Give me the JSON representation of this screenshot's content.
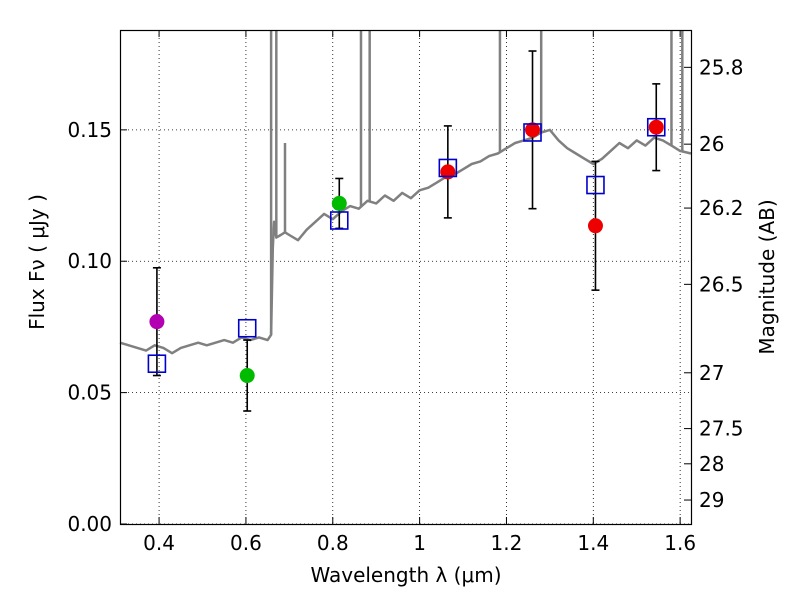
{
  "chart_data": {
    "type": "scatter",
    "xlabel": "Wavelength  λ (μm)",
    "ylabel": "Flux  Fν  ( μJy )",
    "y2label": "Magnitude (AB)",
    "xlim": [
      0.31,
      1.625
    ],
    "ylim": [
      0.0,
      0.188
    ],
    "grid": true,
    "x_ticks": [
      0.4,
      0.6,
      0.8,
      1.0,
      1.2,
      1.4,
      1.6
    ],
    "x_tick_labels": [
      "0.4",
      "0.6",
      "0.8",
      "1",
      "1.2",
      "1.4",
      "1.6"
    ],
    "y_ticks": [
      0.0,
      0.05,
      0.1,
      0.15
    ],
    "y_tick_labels": [
      "0.00",
      "0.05",
      "0.10",
      "0.15"
    ],
    "mag_ticks": [
      25.8,
      26.0,
      26.2,
      26.5,
      27.0,
      27.5,
      28.0,
      29.0
    ],
    "mag_tick_labels": [
      "25.8",
      "26",
      "26.2",
      "26.5",
      "27",
      "27.5",
      "28",
      "29"
    ],
    "colors": {
      "sed": "#808080",
      "model": "#0000cc",
      "err": "#000000",
      "magenta": "#b300b3",
      "green": "#00bb00",
      "red": "#ee0000"
    },
    "observed": [
      {
        "x": 0.395,
        "y": 0.077,
        "err": 0.0205,
        "color": "#b300b3"
      },
      {
        "x": 0.603,
        "y": 0.0565,
        "err": 0.0135,
        "color": "#00bb00"
      },
      {
        "x": 0.815,
        "y": 0.122,
        "err": 0.0095,
        "color": "#00bb00"
      },
      {
        "x": 1.065,
        "y": 0.134,
        "err": 0.0175,
        "color": "#ee0000"
      },
      {
        "x": 1.26,
        "y": 0.15,
        "err": 0.03,
        "color": "#ee0000"
      },
      {
        "x": 1.405,
        "y": 0.1135,
        "err": 0.0245,
        "color": "#ee0000"
      },
      {
        "x": 1.545,
        "y": 0.151,
        "err": 0.0165,
        "color": "#ee0000"
      }
    ],
    "model_points": [
      {
        "x": 0.395,
        "y": 0.061
      },
      {
        "x": 0.603,
        "y": 0.0745
      },
      {
        "x": 0.815,
        "y": 0.1155
      },
      {
        "x": 1.065,
        "y": 0.1355
      },
      {
        "x": 1.26,
        "y": 0.149
      },
      {
        "x": 1.405,
        "y": 0.129
      },
      {
        "x": 1.545,
        "y": 0.151
      }
    ],
    "sed_x": [
      0.31,
      0.33,
      0.35,
      0.37,
      0.39,
      0.41,
      0.43,
      0.45,
      0.47,
      0.49,
      0.51,
      0.53,
      0.55,
      0.57,
      0.59,
      0.61,
      0.63,
      0.65,
      0.658,
      0.662,
      0.665,
      0.67,
      0.68,
      0.69,
      0.7,
      0.72,
      0.74,
      0.76,
      0.78,
      0.8,
      0.82,
      0.84,
      0.86,
      0.88,
      0.9,
      0.92,
      0.94,
      0.96,
      0.98,
      1.0,
      1.02,
      1.04,
      1.06,
      1.08,
      1.1,
      1.12,
      1.14,
      1.16,
      1.18,
      1.2,
      1.22,
      1.24,
      1.26,
      1.28,
      1.3,
      1.32,
      1.34,
      1.36,
      1.38,
      1.4,
      1.42,
      1.44,
      1.46,
      1.48,
      1.5,
      1.52,
      1.54,
      1.56,
      1.58,
      1.6,
      1.625
    ],
    "sed_y": [
      0.069,
      0.068,
      0.067,
      0.066,
      0.068,
      0.067,
      0.065,
      0.067,
      0.068,
      0.069,
      0.068,
      0.069,
      0.07,
      0.069,
      0.071,
      0.07,
      0.071,
      0.07,
      0.072,
      0.105,
      0.115,
      0.109,
      0.11,
      0.111,
      0.11,
      0.108,
      0.112,
      0.115,
      0.118,
      0.116,
      0.119,
      0.121,
      0.12,
      0.123,
      0.122,
      0.125,
      0.123,
      0.126,
      0.124,
      0.127,
      0.128,
      0.13,
      0.132,
      0.133,
      0.135,
      0.137,
      0.138,
      0.14,
      0.141,
      0.143,
      0.145,
      0.146,
      0.147,
      0.149,
      0.15,
      0.146,
      0.143,
      0.141,
      0.139,
      0.137,
      0.139,
      0.142,
      0.145,
      0.143,
      0.146,
      0.144,
      0.147,
      0.146,
      0.144,
      0.142,
      0.141
    ],
    "emission_lines": [
      {
        "x": 0.658,
        "y": 0.188
      },
      {
        "x": 0.67,
        "y": 0.188
      },
      {
        "x": 0.69,
        "y": 0.145
      },
      {
        "x": 0.865,
        "y": 0.188
      },
      {
        "x": 0.885,
        "y": 0.188
      },
      {
        "x": 1.185,
        "y": 0.188
      },
      {
        "x": 1.28,
        "y": 0.188
      },
      {
        "x": 1.58,
        "y": 0.188
      },
      {
        "x": 1.605,
        "y": 0.188
      }
    ]
  }
}
